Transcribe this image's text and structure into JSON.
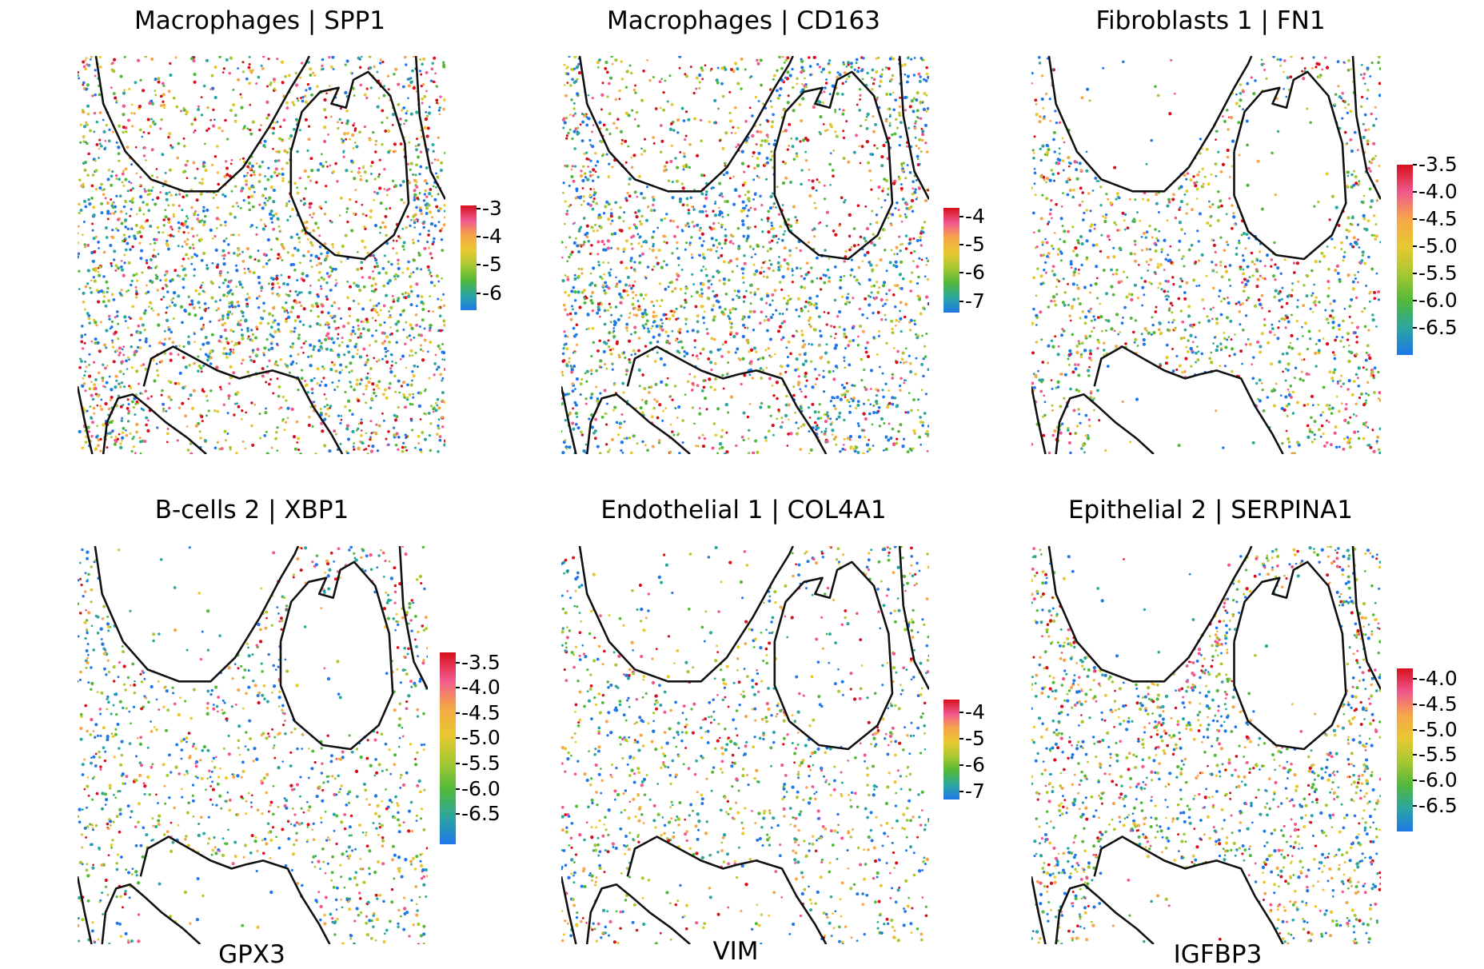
{
  "figure": {
    "colors": {
      "scale": [
        "#1f77e8",
        "#2ba6a0",
        "#53b83a",
        "#a8c832",
        "#e8c830",
        "#f6a64a",
        "#f0588e",
        "#d6101c"
      ],
      "outline": "#111111",
      "background": "#ffffff"
    },
    "bottom_labels": [
      "GPX3",
      "VIM",
      "IGFBP3"
    ]
  },
  "chart_data": [
    {
      "type": "scatter",
      "title": "Macrophages | SPP1",
      "colorbar": {
        "range": [
          -6.6,
          -2.9
        ],
        "ticks": [
          "-3",
          "-4",
          "-5",
          "-6"
        ],
        "tick_values": [
          -3,
          -4,
          -5,
          -6
        ]
      },
      "grid": false,
      "legend": "colorbar right"
    },
    {
      "type": "scatter",
      "title": "Macrophages | CD163",
      "colorbar": {
        "range": [
          -7.4,
          -3.7
        ],
        "ticks": [
          "-4",
          "-5",
          "-6",
          "-7"
        ],
        "tick_values": [
          -4,
          -5,
          -6,
          -7
        ]
      },
      "grid": false,
      "legend": "colorbar right"
    },
    {
      "type": "scatter",
      "title": "Fibroblasts 1 | FN1",
      "colorbar": {
        "range": [
          -7.0,
          -3.5
        ],
        "ticks": [
          "-3.5",
          "-4.0",
          "-4.5",
          "-5.0",
          "-5.5",
          "-6.0",
          "-6.5"
        ],
        "tick_values": [
          -3.5,
          -4.0,
          -4.5,
          -5.0,
          -5.5,
          -6.0,
          -6.5
        ]
      },
      "grid": false,
      "legend": "colorbar right"
    },
    {
      "type": "scatter",
      "title": "B-cells 2 | XBP1",
      "colorbar": {
        "range": [
          -7.1,
          -3.3
        ],
        "ticks": [
          "-3.5",
          "-4.0",
          "-4.5",
          "-5.0",
          "-5.5",
          "-6.0",
          "-6.5"
        ],
        "tick_values": [
          -3.5,
          -4.0,
          -4.5,
          -5.0,
          -5.5,
          -6.0,
          -6.5
        ]
      },
      "grid": false,
      "legend": "colorbar right"
    },
    {
      "type": "scatter",
      "title": "Endothelial 1 | COL4A1",
      "colorbar": {
        "range": [
          -7.3,
          -3.5
        ],
        "ticks": [
          "-4",
          "-5",
          "-6",
          "-7"
        ],
        "tick_values": [
          -4,
          -5,
          -6,
          -7
        ]
      },
      "grid": false,
      "legend": "colorbar right"
    },
    {
      "type": "scatter",
      "title": "Epithelial 2 | SERPINA1",
      "colorbar": {
        "range": [
          -7.0,
          -3.8
        ],
        "ticks": [
          "-4.0",
          "-4.5",
          "-5.0",
          "-5.5",
          "-6.0",
          "-6.5"
        ],
        "tick_values": [
          -4.0,
          -4.5,
          -5.0,
          -5.5,
          -6.0,
          -6.5
        ]
      },
      "grid": false,
      "legend": "colorbar right"
    }
  ]
}
